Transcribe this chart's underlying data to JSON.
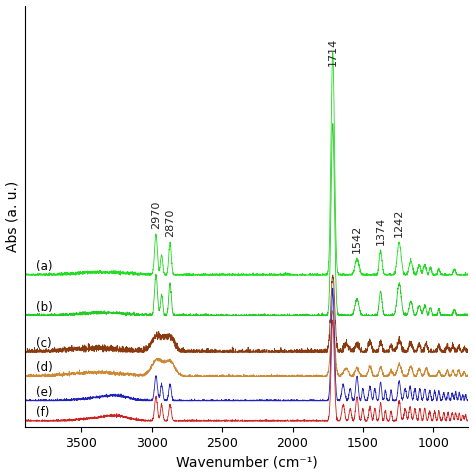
{
  "title": "",
  "xlabel": "Wavenumber (cm⁻¹)",
  "ylabel": "Abs (a. u.)",
  "xmin": 750,
  "xmax": 3900,
  "labels": [
    "(a)",
    "(b)",
    "(c)",
    "(d)",
    "(e)",
    "(f)"
  ],
  "colors": [
    "#22dd22",
    "#22cc22",
    "#8B3A10",
    "#cc8833",
    "#2222bb",
    "#cc2222"
  ],
  "offsets": [
    0.72,
    0.52,
    0.34,
    0.22,
    0.1,
    0.0
  ],
  "annotation_color": "#222222",
  "background_color": "#ffffff"
}
